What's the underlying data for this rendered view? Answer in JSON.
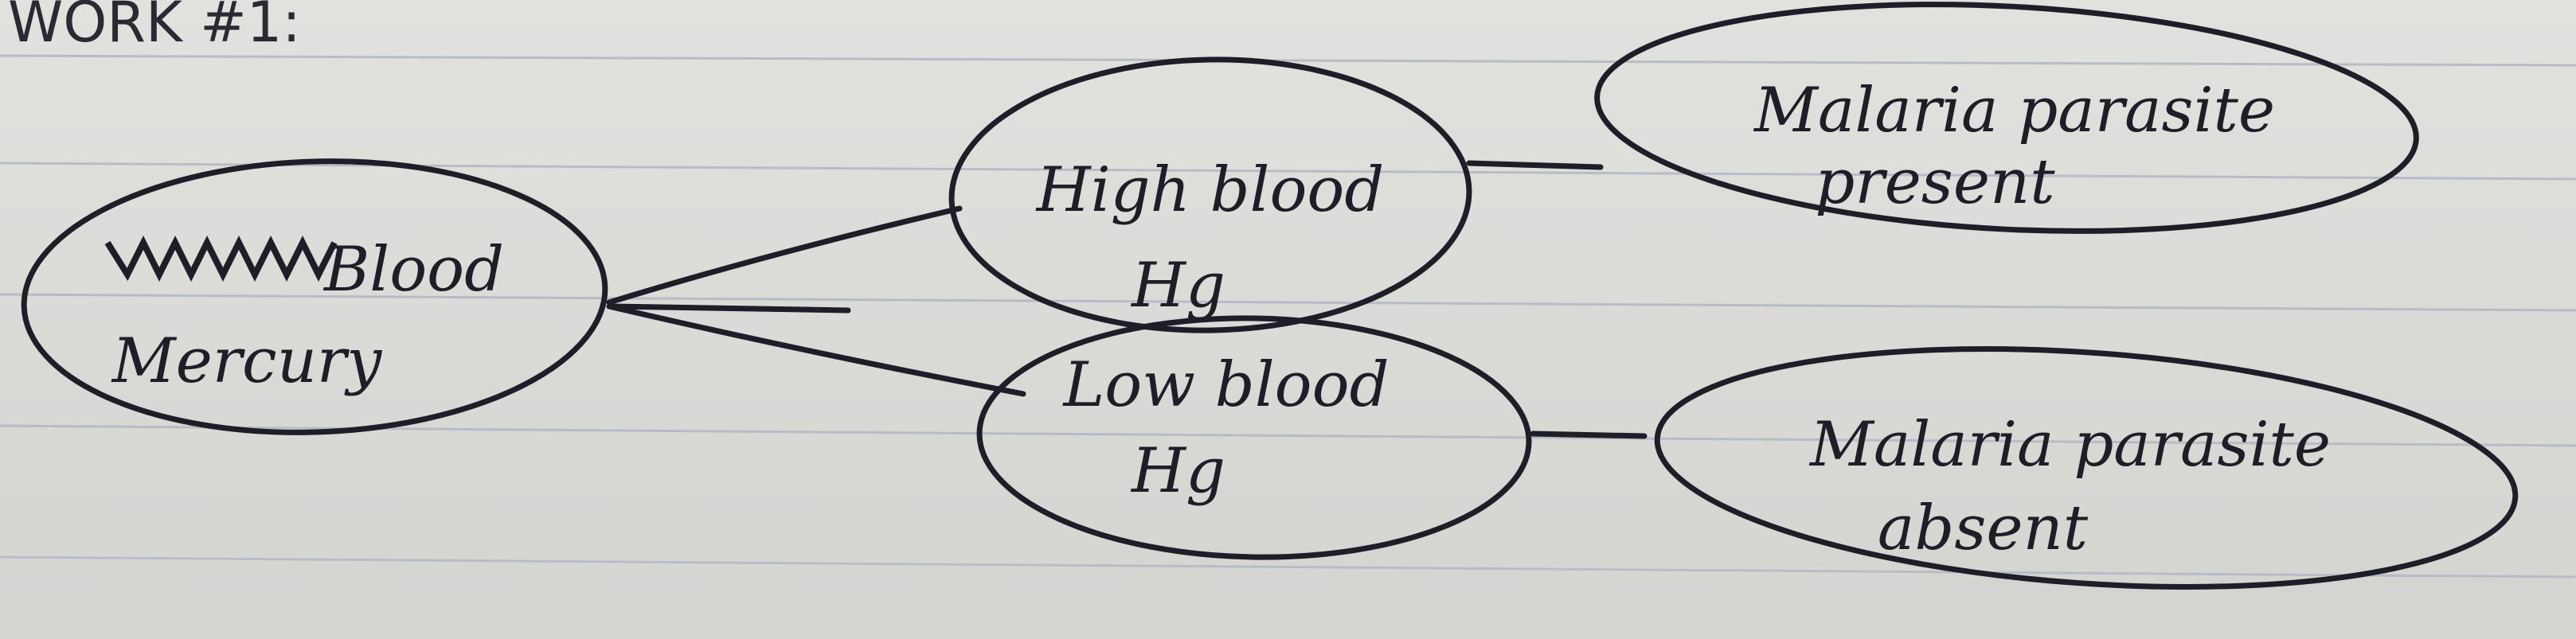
{
  "heading": "WORK #1:",
  "nodes": {
    "blood_mercury": {
      "line1": "Blood",
      "line2": "Mercury"
    },
    "high_blood_hg": {
      "line1": "High blood",
      "line2": "Hg"
    },
    "low_blood_hg": {
      "line1": "Low blood",
      "line2": "Hg"
    },
    "malaria_present": {
      "line1": "Malaria parasite",
      "line2": "present"
    },
    "malaria_absent": {
      "line1": "Malaria parasite",
      "line2": "absent"
    }
  },
  "colors": {
    "ink": "#1e1e28",
    "paper": "#dcdcd9",
    "rule": "#b8bcc4"
  }
}
